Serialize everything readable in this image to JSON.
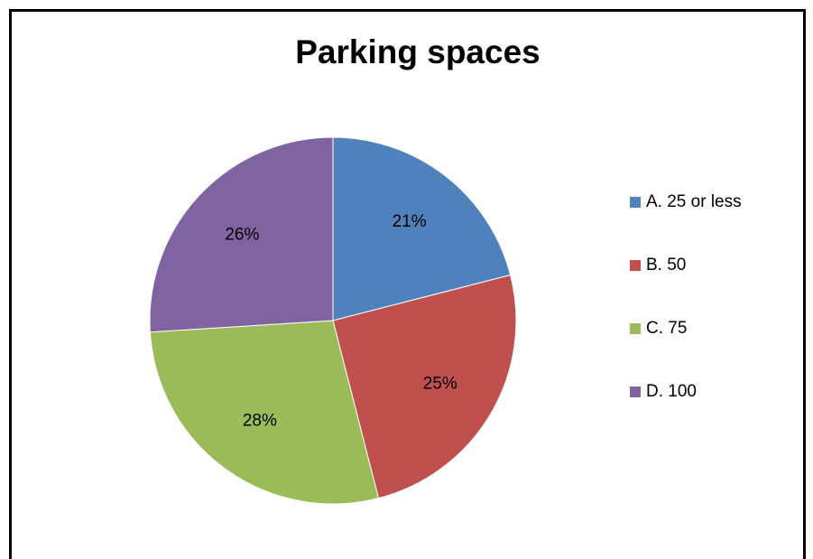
{
  "chart_data": {
    "type": "pie",
    "title": "Parking spaces",
    "categories": [
      "A. 25 or less",
      "B. 50",
      "C. 75",
      "D. 100"
    ],
    "values": [
      21,
      25,
      28,
      26
    ],
    "value_labels": [
      "21%",
      "25%",
      "28%",
      "26%"
    ],
    "colors": [
      "#4f81bd",
      "#c0504d",
      "#9bbb59",
      "#8064a2"
    ],
    "legend": "right"
  }
}
